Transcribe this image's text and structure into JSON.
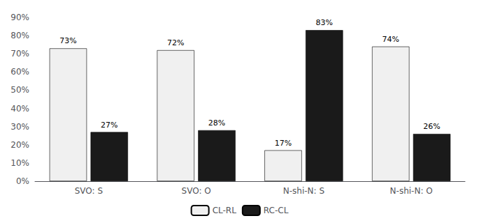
{
  "chart_data": {
    "type": "bar",
    "categories": [
      "SVO: S",
      "SVO: O",
      "N-shi-N: S",
      "N-shi-N: O"
    ],
    "series": [
      {
        "name": "CL-RL",
        "color": "#f0f0f0",
        "values": [
          73,
          72,
          17,
          74
        ],
        "value_labels": [
          "73%",
          "72%",
          "17%",
          "74%"
        ]
      },
      {
        "name": "RC-CL",
        "color": "#1a1a1a",
        "values": [
          27,
          28,
          83,
          26
        ],
        "value_labels": [
          "27%",
          "28%",
          "83%",
          "26%"
        ]
      }
    ],
    "ylim": [
      0,
      90
    ],
    "yticks": [
      {
        "value": 0,
        "label": "0%"
      },
      {
        "value": 10,
        "label": "10%"
      },
      {
        "value": 20,
        "label": "20%"
      },
      {
        "value": 30,
        "label": "30%"
      },
      {
        "value": 40,
        "label": "40%"
      },
      {
        "value": 50,
        "label": "50%"
      },
      {
        "value": 60,
        "label": "60%"
      },
      {
        "value": 70,
        "label": "70%"
      },
      {
        "value": 80,
        "label": "80%"
      },
      {
        "value": 90,
        "label": "90%"
      }
    ],
    "grid": false,
    "legend": "bottom",
    "data_labels": true
  }
}
